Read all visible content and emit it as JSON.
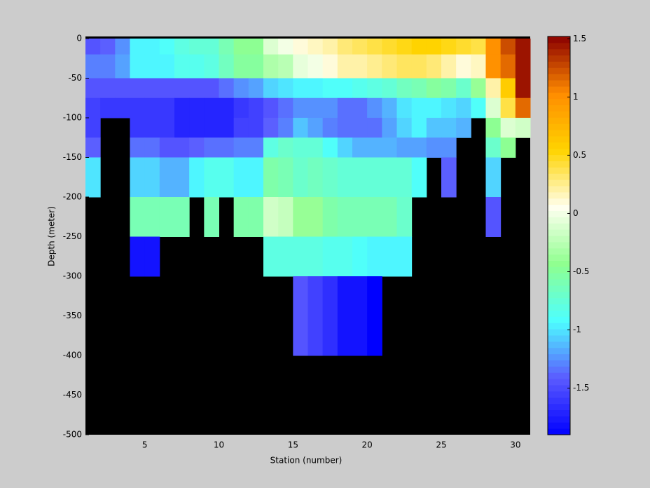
{
  "chart_data": {
    "type": "heatmap",
    "xlabel": "Station (number)",
    "ylabel": "Depth (meter)",
    "x": [
      1,
      2,
      3,
      4,
      5,
      6,
      7,
      8,
      9,
      10,
      11,
      12,
      13,
      14,
      15,
      16,
      17,
      18,
      19,
      20,
      21,
      22,
      23,
      24,
      25,
      26,
      27,
      28,
      29,
      30,
      31
    ],
    "y": [
      0,
      -20,
      -50,
      -75,
      -100,
      -125,
      -150,
      -200,
      -250,
      -300,
      -400,
      -500
    ],
    "xlim": [
      1,
      31
    ],
    "ylim": [
      -500,
      0
    ],
    "xticks": [
      5,
      10,
      15,
      20,
      25,
      30
    ],
    "yticks": [
      0,
      -50,
      -100,
      -150,
      -200,
      -250,
      -300,
      -350,
      -400,
      -450,
      -500
    ],
    "clim": [
      -1.9,
      1.52
    ],
    "cticks": [
      1.5,
      1,
      0.5,
      0,
      -0.5,
      -1,
      -1.5
    ],
    "colormap": [
      "#0000ff",
      "#5b5bff",
      "#4dffff",
      "#8fff8f",
      "#fffff0",
      "#ffd400",
      "#ff8c00",
      "#8b0000"
    ],
    "missing_color": "#000000",
    "z": [
      [
        -1.45,
        -1.4,
        -1.25,
        -0.95,
        -0.95,
        -0.9,
        -0.8,
        -0.75,
        -0.75,
        -0.6,
        -0.45,
        -0.45,
        -0.1,
        0.0,
        0.1,
        0.15,
        0.2,
        0.3,
        0.35,
        0.4,
        0.45,
        0.5,
        0.55,
        0.55,
        0.5,
        0.45,
        0.4,
        1.0,
        1.25,
        1.45
      ],
      [
        -1.3,
        -1.3,
        -1.2,
        -0.95,
        -0.95,
        -0.95,
        -0.85,
        -0.85,
        -0.8,
        -0.65,
        -0.5,
        -0.5,
        -0.3,
        -0.25,
        -0.05,
        0.0,
        0.1,
        0.2,
        0.2,
        0.25,
        0.3,
        0.35,
        0.35,
        0.3,
        0.2,
        0.1,
        0.15,
        1.0,
        1.15,
        1.45
      ],
      [
        -1.45,
        -1.45,
        -1.45,
        -1.45,
        -1.45,
        -1.45,
        -1.45,
        -1.45,
        -1.45,
        -1.35,
        -1.25,
        -1.2,
        -1.05,
        -1.0,
        -0.95,
        -0.95,
        -0.9,
        -0.9,
        -0.85,
        -0.8,
        -0.75,
        -0.65,
        -0.6,
        -0.5,
        -0.55,
        -0.7,
        -0.4,
        0.2,
        0.6,
        1.45
      ],
      [
        -1.55,
        -1.6,
        -1.6,
        -1.6,
        -1.6,
        -1.6,
        -1.7,
        -1.7,
        -1.7,
        -1.7,
        -1.6,
        -1.55,
        -1.45,
        -1.35,
        -1.25,
        -1.25,
        -1.25,
        -1.35,
        -1.35,
        -1.25,
        -1.15,
        -1.0,
        -0.95,
        -0.95,
        -1.0,
        -1.05,
        -0.9,
        -0.1,
        0.4,
        1.15
      ],
      [
        -1.55,
        null,
        null,
        -1.6,
        -1.6,
        -1.6,
        -1.7,
        -1.7,
        -1.7,
        -1.7,
        -1.55,
        -1.55,
        -1.4,
        -1.3,
        -1.1,
        -1.2,
        -1.3,
        -1.35,
        -1.35,
        -1.35,
        -1.2,
        -1.05,
        -0.95,
        -1.1,
        -1.1,
        -1.15,
        null,
        -0.45,
        -0.1,
        -0.15
      ],
      [
        -1.4,
        null,
        null,
        -1.35,
        -1.35,
        -1.45,
        -1.45,
        -1.4,
        -1.35,
        -1.35,
        -1.3,
        -1.3,
        -0.8,
        -0.7,
        -0.75,
        -0.75,
        -0.9,
        -1.05,
        -1.15,
        -1.15,
        -1.15,
        -1.2,
        -1.2,
        -1.25,
        -1.25,
        null,
        null,
        -0.7,
        -0.45,
        null
      ],
      [
        -1.0,
        null,
        null,
        -1.05,
        -1.05,
        -1.15,
        -1.15,
        -0.95,
        -0.85,
        -0.85,
        -0.95,
        -0.95,
        -0.55,
        -0.6,
        -0.7,
        -0.65,
        -0.7,
        -0.75,
        -0.75,
        -0.75,
        -0.75,
        -0.75,
        -0.9,
        null,
        -1.4,
        null,
        null,
        -1.05,
        null,
        null
      ],
      [
        null,
        null,
        null,
        -0.6,
        -0.6,
        -0.6,
        -0.6,
        null,
        -0.6,
        null,
        -0.55,
        -0.55,
        -0.15,
        -0.2,
        -0.4,
        -0.4,
        -0.55,
        -0.6,
        -0.6,
        -0.6,
        -0.6,
        -0.7,
        null,
        null,
        null,
        null,
        null,
        -1.45,
        null,
        null
      ],
      [
        null,
        null,
        null,
        -1.8,
        -1.8,
        null,
        null,
        null,
        null,
        null,
        null,
        null,
        -0.8,
        -0.8,
        -0.8,
        -0.8,
        -0.85,
        -0.85,
        -0.9,
        -0.95,
        -0.95,
        -0.95,
        null,
        null,
        null,
        null,
        null,
        null,
        null,
        null
      ],
      [
        null,
        null,
        null,
        null,
        null,
        null,
        null,
        null,
        null,
        null,
        null,
        null,
        null,
        null,
        -1.45,
        -1.55,
        -1.65,
        -1.8,
        -1.8,
        -1.9,
        null,
        null,
        null,
        null,
        null,
        null,
        null,
        null,
        null,
        null
      ],
      [
        null,
        null,
        null,
        null,
        null,
        null,
        null,
        null,
        null,
        null,
        null,
        null,
        null,
        null,
        null,
        null,
        null,
        null,
        null,
        null,
        null,
        null,
        null,
        null,
        null,
        null,
        null,
        null,
        null,
        null
      ]
    ]
  }
}
